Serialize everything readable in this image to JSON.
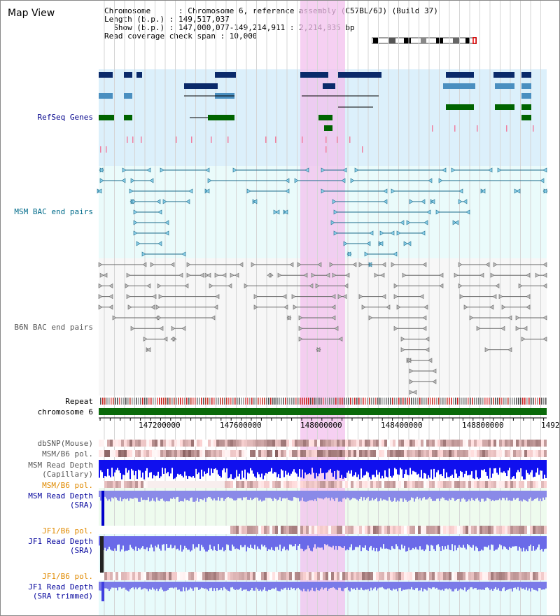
{
  "window": {
    "title": "Map View"
  },
  "info": {
    "chromosome": "Chromosome      : Chromosome 6, reference assembly (C57BL/6J) (Build 37)",
    "length": "Length (b.p.) : 149,517,037",
    "show": "  Show (b.p.) : 147,000,077-149,214,911 : 2,214,835 bp",
    "coverage": "Read coverage check span : 10,000"
  },
  "tracks": {
    "refseq": "RefSeq Genes",
    "msm_bac": "MSM BAC end pairs",
    "b6n_bac": "B6N BAC end pairs",
    "repeat": "Repeat",
    "chromosome": "chromosome 6",
    "dbsnp": "dbSNP(Mouse)",
    "msm_b6_pol": "MSM/B6 pol.",
    "msm_depth_cap_1": "MSM Read Depth",
    "msm_depth_cap_2": "(Capillary)",
    "msm_b6_pol_sra": "MSM/B6 pol.",
    "msm_depth_sra_1": "MSM Read Depth",
    "msm_depth_sra_2": "(SRA)",
    "jf1_b6_pol": "JF1/B6 pol.",
    "jf1_depth_1": "JF1 Read Depth",
    "jf1_depth_2": "(SRA)",
    "jf1_b6_pol_2": "JF1/B6 pol.",
    "jf1_trim_1": "JF1 Read Depth",
    "jf1_trim_2": "(SRA trimmed)"
  },
  "axis": {
    "ticks": [
      "147200000",
      "147600000",
      "148000000",
      "148400000",
      "148800000",
      "1492"
    ]
  },
  "colors": {
    "refseq_label": "#00008b",
    "msm_label": "#006b8a",
    "b6n_label": "#555555",
    "pol_orange": "#e08a00",
    "depth_blue": "#00009b",
    "highlight": "#f3c0ee"
  }
}
